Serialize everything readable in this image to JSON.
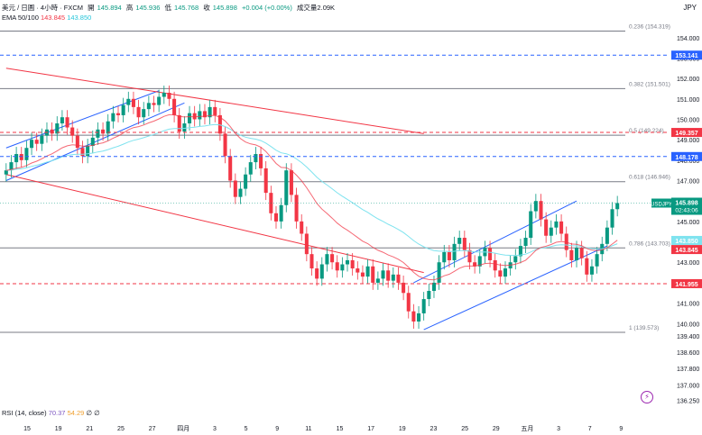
{
  "header": {
    "symbol": "美元 / 日圓 · 4小時 · FXCM",
    "open_label": "開",
    "open": "145.894",
    "high_label": "高",
    "high": "145.936",
    "low_label": "低",
    "low": "145.768",
    "close_label": "收",
    "close": "145.898",
    "change": "+0.004 (+0.00%)",
    "volume": "成交量2.09K",
    "ema_label": "EMA 50/100",
    "ema50": "143.845",
    "ema100": "143.850",
    "currency": "JPY"
  },
  "rsi": {
    "label": "RSI (14, close)",
    "v1": "70.37",
    "v2": "54.29",
    "v3": "∅",
    "v4": "∅"
  },
  "colors": {
    "up": "#089981",
    "down": "#f23645",
    "ema50": "#f23645",
    "ema100": "#7fe3ef",
    "channel": "#2962ff",
    "trend": "#f23645",
    "fib": "#787b86"
  },
  "chart_data": {
    "type": "candlestick",
    "ylim": [
      136.0,
      155.4
    ],
    "y_ticks": [
      "154.000",
      "153.000",
      "152.000",
      "151.000",
      "150.000",
      "149.000",
      "148.000",
      "147.000",
      "146.000",
      "145.000",
      "144.000",
      "143.000",
      "142.000",
      "141.000",
      "140.000",
      "139.400",
      "138.600",
      "137.800",
      "137.000",
      "136.250"
    ],
    "x_ticks": [
      "15",
      "19",
      "21",
      "25",
      "27",
      "四月",
      "3",
      "5",
      "9",
      "11",
      "15",
      "17",
      "19",
      "23",
      "25",
      "29",
      "五月",
      "3",
      "7",
      "9"
    ],
    "fib_levels": [
      {
        "label": "0.236 (154.319)",
        "value": 154.319
      },
      {
        "label": "0.382 (151.501)",
        "value": 151.501
      },
      {
        "label": "0.5 (149.224)",
        "value": 149.224
      },
      {
        "label": "0.618 (146.946)",
        "value": 146.946
      },
      {
        "label": "0.786 (143.703)",
        "value": 143.703
      },
      {
        "label": "1 (139.573)",
        "value": 139.573
      }
    ],
    "horizontal_lines": [
      {
        "value": 153.141,
        "label": "153.141",
        "style": "dashed",
        "color": "blue"
      },
      {
        "value": 149.357,
        "label": "149.357",
        "style": "dashed",
        "color": "red"
      },
      {
        "value": 148.178,
        "label": "148.178",
        "style": "dashed",
        "color": "blue"
      },
      {
        "value": 141.955,
        "label": "141.955",
        "style": "dashed",
        "color": "red"
      }
    ],
    "price_tags": [
      {
        "label": "USDJPY",
        "value": "145.898",
        "timer": "02:43:06"
      },
      {
        "value": "143.850"
      },
      {
        "value": "143.845"
      }
    ],
    "close_series": [
      147.5,
      147.9,
      148.3,
      148.0,
      148.6,
      149.0,
      148.8,
      149.2,
      149.5,
      149.3,
      149.8,
      150.1,
      149.6,
      149.2,
      148.6,
      148.2,
      148.7,
      149.1,
      149.5,
      149.3,
      149.9,
      150.3,
      150.2,
      150.7,
      151.0,
      150.6,
      150.1,
      150.5,
      150.8,
      150.7,
      151.1,
      151.3,
      151.0,
      150.2,
      149.4,
      149.8,
      150.3,
      150.0,
      150.4,
      150.1,
      150.6,
      150.2,
      149.3,
      148.2,
      147.0,
      146.2,
      146.6,
      147.3,
      147.9,
      148.3,
      147.6,
      146.4,
      145.4,
      145.0,
      145.8,
      147.5,
      146.3,
      145.0,
      144.4,
      143.4,
      142.7,
      142.2,
      142.9,
      143.4,
      143.0,
      142.6,
      142.9,
      143.1,
      142.7,
      142.5,
      142.3,
      142.8,
      142.0,
      142.2,
      142.6,
      142.1,
      142.4,
      142.0,
      141.5,
      140.6,
      140.1,
      140.5,
      141.2,
      141.6,
      142.0,
      143.0,
      143.5,
      143.1,
      143.9,
      144.2,
      143.6,
      143.0,
      142.8,
      143.3,
      143.7,
      143.1,
      142.6,
      142.3,
      142.7,
      143.0,
      143.3,
      143.8,
      144.2,
      145.5,
      146.0,
      145.1,
      144.3,
      144.7,
      145.0,
      144.4,
      143.6,
      143.1,
      143.7,
      143.2,
      142.4,
      142.8,
      143.4,
      143.9,
      144.7,
      145.6,
      145.9
    ]
  }
}
